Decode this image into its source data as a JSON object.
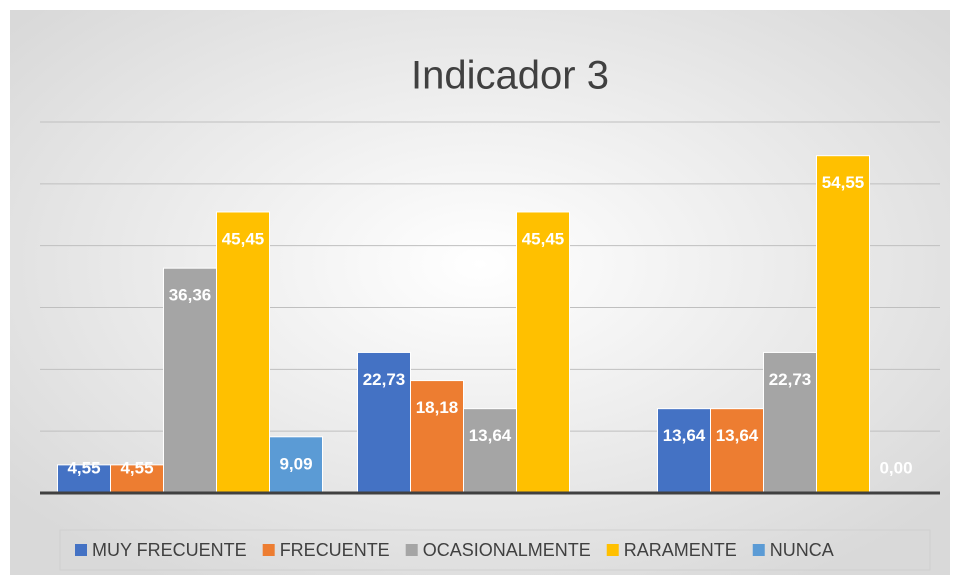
{
  "chart_data": {
    "type": "bar",
    "title": "Indicador 3",
    "categories": [
      null,
      null,
      null
    ],
    "series": [
      {
        "name": "MUY FRECUENTE",
        "color": "#4472c4",
        "values": [
          4.55,
          22.73,
          13.64
        ],
        "value_labels": [
          "4,55",
          "22,73",
          "13,64"
        ]
      },
      {
        "name": "FRECUENTE",
        "color": "#ed7d31",
        "values": [
          4.55,
          18.18,
          13.64
        ],
        "value_labels": [
          "4,55",
          "18,18",
          "13,64"
        ]
      },
      {
        "name": "OCASIONALMENTE",
        "color": "#a5a5a5",
        "values": [
          36.36,
          13.64,
          22.73
        ],
        "value_labels": [
          "36,36",
          "13,64",
          "22,73"
        ]
      },
      {
        "name": "RARAMENTE",
        "color": "#ffc000",
        "values": [
          45.45,
          45.45,
          54.55
        ],
        "value_labels": [
          "45,45",
          "45,45",
          "54,55"
        ]
      },
      {
        "name": "NUNCA",
        "color": "#5b9bd5",
        "values": [
          9.09,
          null,
          0.0
        ],
        "value_labels": [
          "9,09",
          null,
          "0,00"
        ]
      }
    ],
    "ylim": [
      0,
      60
    ],
    "yticks": [
      0,
      10,
      20,
      30,
      40,
      50,
      60
    ],
    "grid": true,
    "legend": "bottom"
  }
}
